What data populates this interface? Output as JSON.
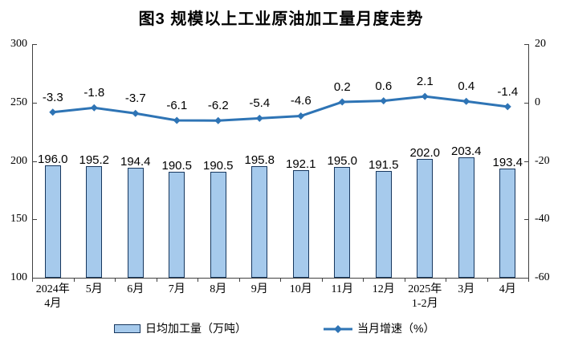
{
  "title": "图3  规模以上工业原油加工量月度走势",
  "colors": {
    "bar_fill": "#A6CAEC",
    "bar_border": "#17375E",
    "line": "#2E74B5",
    "axis": "#404040",
    "text": "#000000"
  },
  "chart_data": {
    "type": "bar+line",
    "title": "图3  规模以上工业原油加工量月度走势",
    "categories": [
      "2024年\n4月",
      "5月",
      "6月",
      "7月",
      "8月",
      "9月",
      "10月",
      "11月",
      "12月",
      "2025年\n1-2月",
      "3月",
      "4月"
    ],
    "series": [
      {
        "name": "日均加工量（万吨）",
        "type": "bar",
        "axis": "left",
        "values": [
          196.0,
          195.2,
          194.4,
          190.5,
          190.5,
          195.8,
          192.1,
          195.0,
          191.5,
          202.0,
          203.4,
          193.4
        ]
      },
      {
        "name": "当月增速（%）",
        "type": "line",
        "axis": "right",
        "values": [
          -3.3,
          -1.8,
          -3.7,
          -6.1,
          -6.2,
          -5.4,
          -4.6,
          0.2,
          0.6,
          2.1,
          0.4,
          -1.4
        ]
      }
    ],
    "left_axis": {
      "min": 100,
      "max": 300,
      "ticks": [
        300,
        250,
        200,
        150,
        100
      ]
    },
    "right_axis": {
      "min": -60,
      "max": 20,
      "ticks": [
        20,
        0,
        -20,
        -40,
        -60
      ]
    },
    "grid": false,
    "legend_position": "bottom",
    "legend": {
      "bar_label": "日均加工量（万吨）",
      "line_label": "当月增速（%）"
    }
  }
}
